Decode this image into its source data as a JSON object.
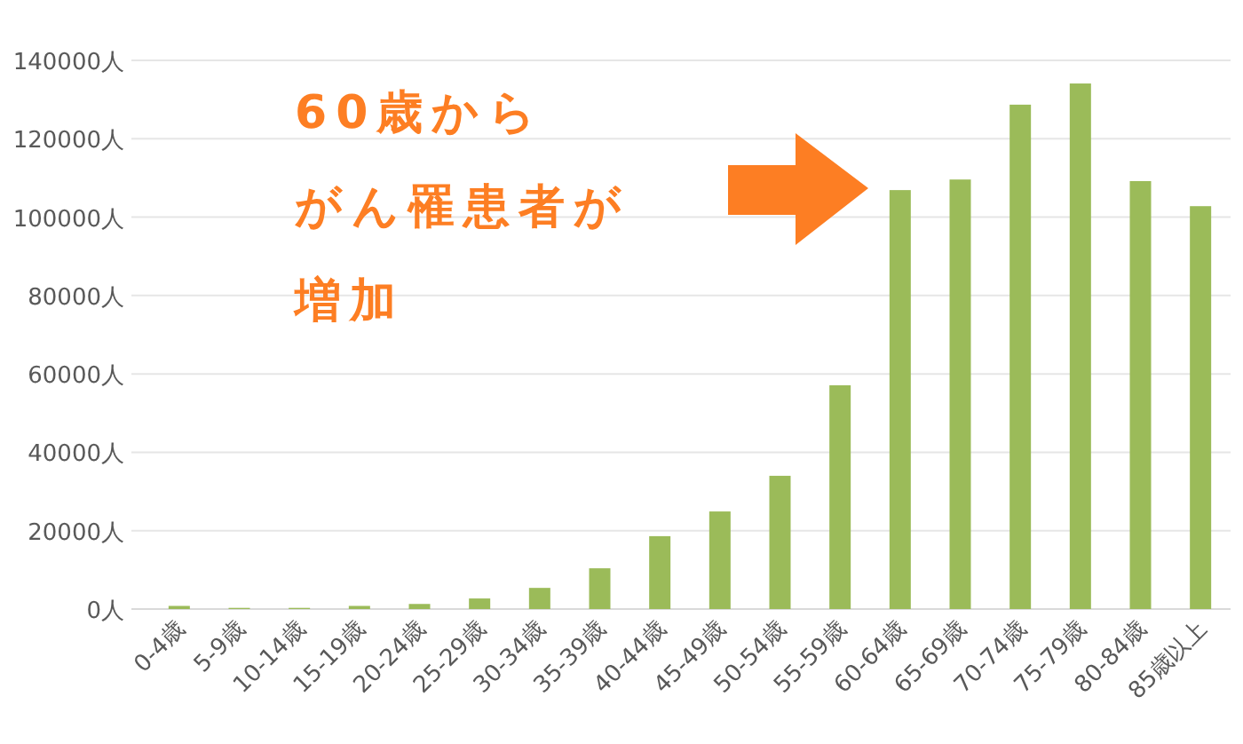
{
  "chart_data": {
    "type": "bar",
    "categories": [
      "0-4歳",
      "5-9歳",
      "10-14歳",
      "15-19歳",
      "20-24歳",
      "25-29歳",
      "30-34歳",
      "35-39歳",
      "40-44歳",
      "45-49歳",
      "50-54歳",
      "55-59歳",
      "60-64歳",
      "65-69歳",
      "70-74歳",
      "75-79歳",
      "80-84歳",
      "85歳以上"
    ],
    "values": [
      800,
      300,
      300,
      800,
      1300,
      2700,
      5400,
      10400,
      18600,
      24900,
      34000,
      57100,
      106900,
      109600,
      128700,
      134100,
      109200,
      102800
    ],
    "color": "#9bbb59",
    "ylim": [
      0,
      140000
    ],
    "yticks": [
      {
        "value": 0,
        "label": "0人"
      },
      {
        "value": 20000,
        "label": "20000人"
      },
      {
        "value": 40000,
        "label": "40000人"
      },
      {
        "value": 60000,
        "label": "60000人"
      },
      {
        "value": 80000,
        "label": "80000人"
      },
      {
        "value": 100000,
        "label": "100000人"
      },
      {
        "value": 120000,
        "label": "120000人"
      },
      {
        "value": 140000,
        "label": "140000人"
      }
    ],
    "grid": "y",
    "annotations": [
      "60歳から",
      "がん罹患者が",
      "増加"
    ]
  }
}
